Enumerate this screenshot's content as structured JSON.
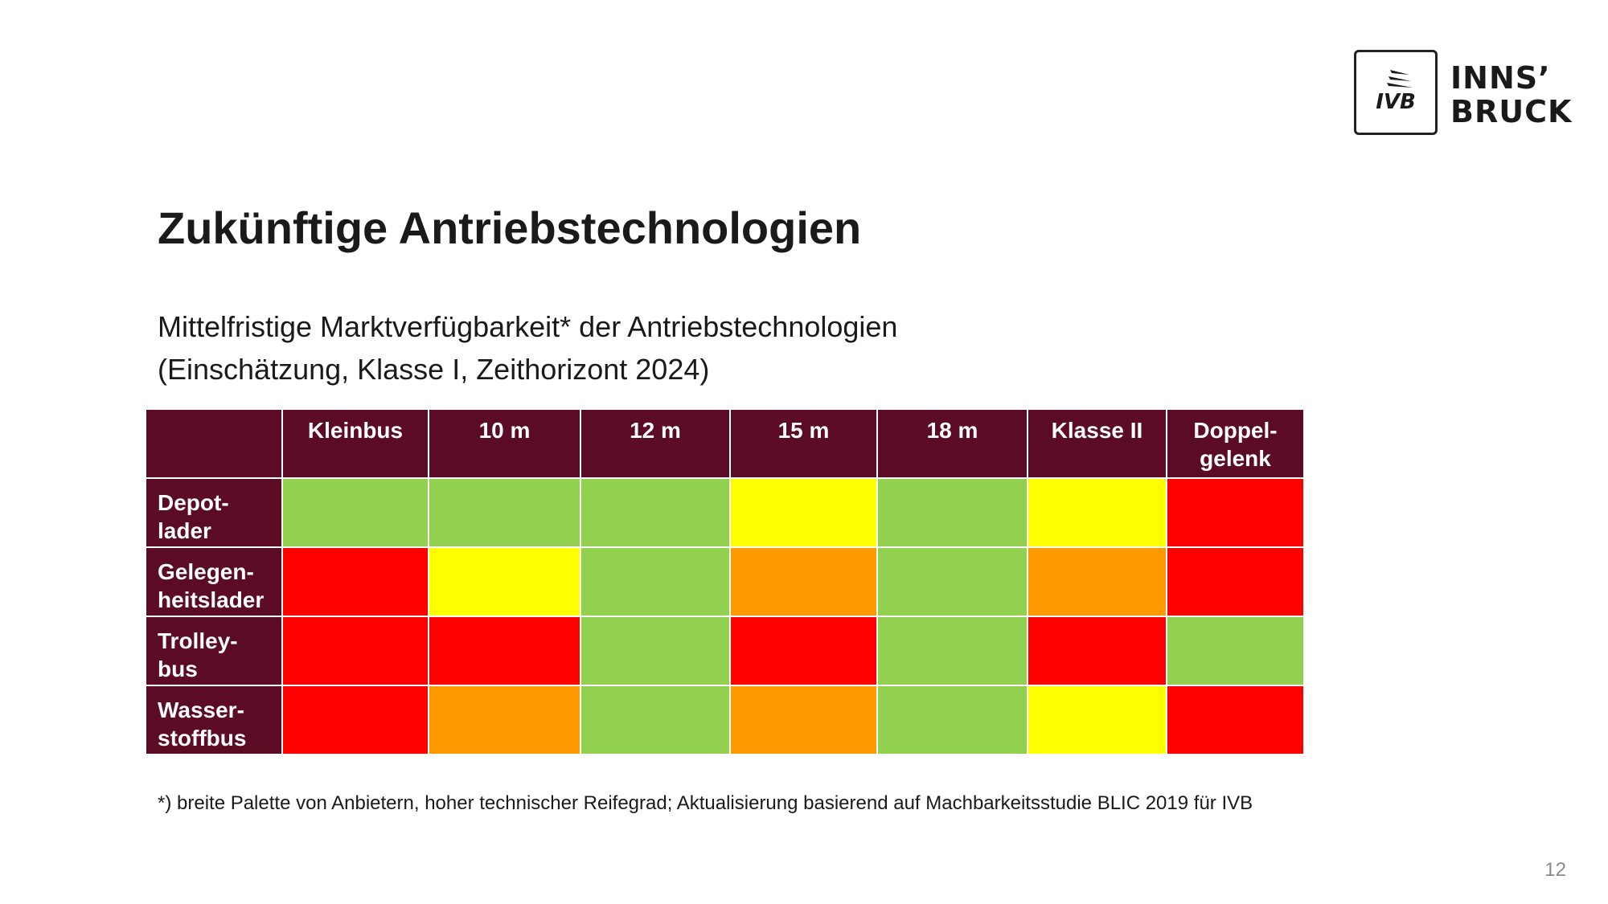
{
  "logo": {
    "mark_text": "IVB",
    "wordmark_line1": "INNS’",
    "wordmark_line2": "BRUCK"
  },
  "title": "Zukünftige Antriebstechnologien",
  "subtitle": {
    "line1": "Mittelfristige Marktverfügbarkeit* der Antriebstechnologien",
    "line2": "(Einschätzung, Klasse I, Zeithorizont 2024)"
  },
  "colors": {
    "header_bg": "#5b0b24",
    "green": "#92d050",
    "yellow": "#ffff00",
    "orange": "#ff9900",
    "red": "#ff0000"
  },
  "table": {
    "columns": [
      "",
      "Kleinbus",
      "10 m",
      "12 m",
      "15 m",
      "18 m",
      "Klasse II",
      "Doppel-\ngelenk"
    ],
    "rows": [
      {
        "label": "Depot-\nlader",
        "ratings": [
          "green",
          "green",
          "green",
          "yellow",
          "green",
          "yellow",
          "red"
        ]
      },
      {
        "label": "Gelegen-\nheitslader",
        "ratings": [
          "red",
          "yellow",
          "green",
          "orange",
          "green",
          "orange",
          "red"
        ]
      },
      {
        "label": "Trolley-\nbus",
        "ratings": [
          "red",
          "red",
          "green",
          "red",
          "green",
          "red",
          "green"
        ]
      },
      {
        "label": "Wasser-\nstoffbus",
        "ratings": [
          "red",
          "orange",
          "green",
          "orange",
          "green",
          "yellow",
          "red"
        ]
      }
    ]
  },
  "footnote": "*) breite Palette von Anbietern, hoher technischer Reifegrad; Aktualisierung basierend auf Machbarkeitsstudie BLIC 2019 für IVB",
  "page_number": "12"
}
